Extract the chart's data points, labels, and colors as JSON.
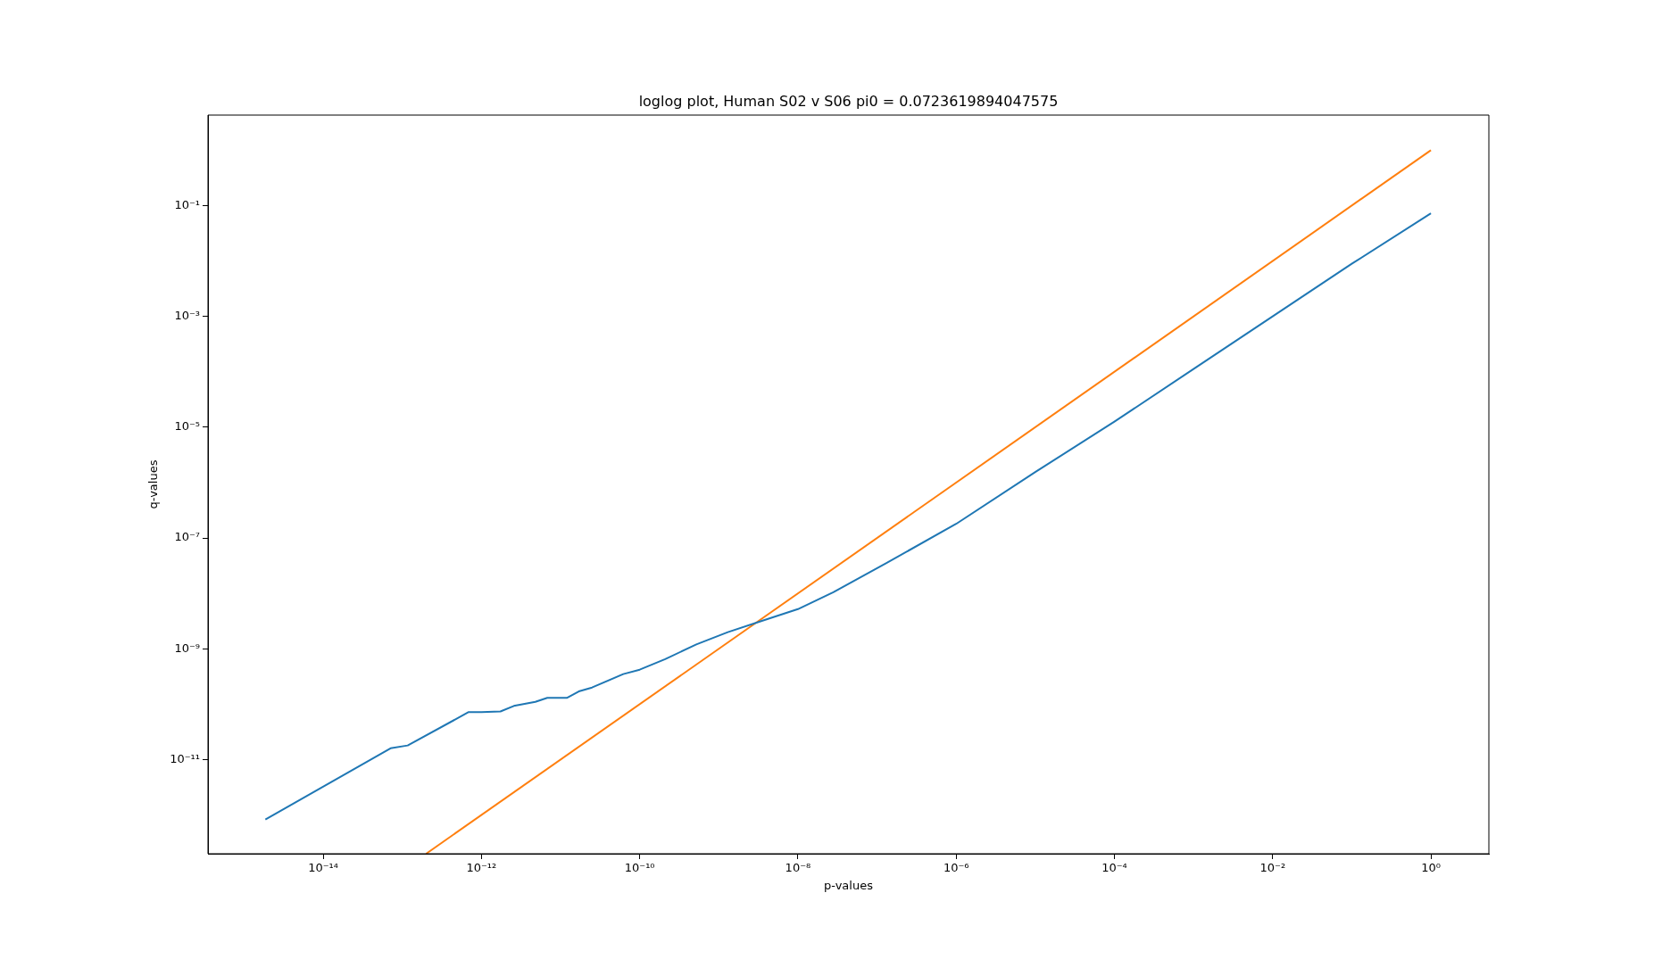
{
  "chart_data": {
    "type": "line",
    "title": "loglog plot, Human S02 v S06 pi0 = 0.0723619894047575",
    "xlabel": "p-values",
    "ylabel": "q-values",
    "log": "xy",
    "grid": false,
    "legend": false,
    "xlim": [
      3.5e-16,
      5.4
    ],
    "ylim": [
      2e-13,
      4.3
    ],
    "xticks": [
      {
        "value": 1e-14,
        "label": "10⁻¹⁴"
      },
      {
        "value": 1e-12,
        "label": "10⁻¹²"
      },
      {
        "value": 1e-10,
        "label": "10⁻¹⁰"
      },
      {
        "value": 1e-08,
        "label": "10⁻⁸"
      },
      {
        "value": 1e-06,
        "label": "10⁻⁶"
      },
      {
        "value": 0.0001,
        "label": "10⁻⁴"
      },
      {
        "value": 0.01,
        "label": "10⁻²"
      },
      {
        "value": 1,
        "label": "10⁰"
      }
    ],
    "yticks": [
      {
        "value": 1e-11,
        "label": "10⁻¹¹"
      },
      {
        "value": 1e-09,
        "label": "10⁻⁹"
      },
      {
        "value": 1e-07,
        "label": "10⁻⁷"
      },
      {
        "value": 1e-05,
        "label": "10⁻⁵"
      },
      {
        "value": 0.001,
        "label": "10⁻³"
      },
      {
        "value": 0.1,
        "label": "10⁻¹"
      }
    ],
    "series": [
      {
        "color": "#1f77b4",
        "x": [
          1.86e-15,
          7.1e-14,
          1.17e-13,
          6.9e-13,
          1e-12,
          1.74e-12,
          2.57e-12,
          4.8e-12,
          6.8e-12,
          1.2e-11,
          1.7e-11,
          2.5e-11,
          6.2e-11,
          1e-10,
          2.1e-10,
          5.2e-10,
          1.3e-09,
          3.3e-09,
          1e-08,
          2.8e-08,
          1.3e-07,
          1e-06,
          1e-05,
          0.0001,
          0.001,
          0.01,
          0.1,
          1
        ],
        "values": [
          8.3e-13,
          1.6e-11,
          1.8e-11,
          7.2e-11,
          7.2e-11,
          7.4e-11,
          9.3e-11,
          1.1e-10,
          1.3e-10,
          1.3e-10,
          1.7e-10,
          2e-10,
          3.5e-10,
          4.2e-10,
          6.5e-10,
          1.2e-09,
          2e-09,
          3.1e-09,
          5.2e-09,
          1.05e-08,
          3.5e-08,
          1.8e-07,
          1.55e-06,
          1.26e-05,
          0.000112,
          0.001,
          0.0089,
          0.0724
        ]
      },
      {
        "color": "#ff7f0e",
        "x": [
          2e-13,
          1
        ],
        "values": [
          2e-13,
          1
        ]
      }
    ]
  }
}
